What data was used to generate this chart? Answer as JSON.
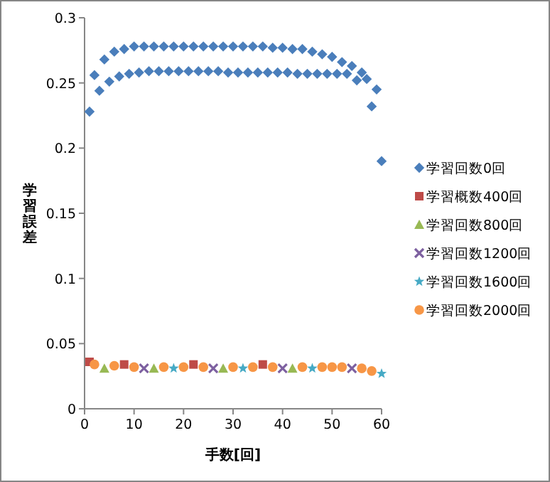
{
  "chart_data": {
    "type": "scatter",
    "xlabel": "手数[回]",
    "ylabel": "学習誤差",
    "xlim": [
      0,
      60
    ],
    "ylim": [
      0,
      0.3
    ],
    "xticks": [
      0,
      10,
      20,
      30,
      40,
      50,
      60
    ],
    "yticks": [
      0,
      0.05,
      0.1,
      0.15,
      0.2,
      0.25,
      0.3
    ],
    "grid": false,
    "legend": "right",
    "series": [
      {
        "name": "学習回数0回",
        "color": "#4a7ebb",
        "marker": "diamond",
        "x": [
          1,
          2,
          3,
          4,
          5,
          6,
          7,
          8,
          9,
          10,
          11,
          12,
          13,
          14,
          15,
          16,
          17,
          18,
          19,
          20,
          21,
          22,
          23,
          24,
          25,
          26,
          27,
          28,
          29,
          30,
          31,
          32,
          33,
          34,
          35,
          36,
          37,
          38,
          39,
          40,
          41,
          42,
          43,
          44,
          45,
          46,
          47,
          48,
          49,
          50,
          51,
          52,
          53,
          54,
          55,
          56,
          57,
          58,
          59,
          60
        ],
        "values": [
          0.228,
          0.256,
          0.244,
          0.268,
          0.251,
          0.274,
          0.255,
          0.276,
          0.257,
          0.278,
          0.258,
          0.278,
          0.259,
          0.278,
          0.259,
          0.278,
          0.259,
          0.278,
          0.259,
          0.278,
          0.259,
          0.278,
          0.259,
          0.278,
          0.259,
          0.278,
          0.259,
          0.278,
          0.258,
          0.278,
          0.258,
          0.278,
          0.258,
          0.278,
          0.258,
          0.278,
          0.258,
          0.277,
          0.258,
          0.277,
          0.258,
          0.276,
          0.257,
          0.276,
          0.257,
          0.274,
          0.257,
          0.272,
          0.257,
          0.27,
          0.257,
          0.266,
          0.257,
          0.263,
          0.252,
          0.258,
          0.253,
          0.232,
          0.245,
          0.19
        ]
      },
      {
        "name": "学習概数400回",
        "color": "#be4b48",
        "marker": "square",
        "x": [
          1,
          8,
          22,
          36
        ],
        "values": [
          0.036,
          0.034,
          0.034,
          0.034
        ]
      },
      {
        "name": "学習回数800回",
        "color": "#98b954",
        "marker": "triangle",
        "x": [
          4,
          14,
          28,
          42
        ],
        "values": [
          0.031,
          0.031,
          0.031,
          0.031
        ]
      },
      {
        "name": "学習回数1200回",
        "color": "#7d60a0",
        "marker": "cross",
        "x": [
          12,
          26,
          40,
          54
        ],
        "values": [
          0.031,
          0.031,
          0.031,
          0.031
        ]
      },
      {
        "name": "学習回数1600回",
        "color": "#46aac5",
        "marker": "star",
        "x": [
          18,
          32,
          46,
          60
        ],
        "values": [
          0.031,
          0.031,
          0.031,
          0.027
        ]
      },
      {
        "name": "学習回数2000回",
        "color": "#f79646",
        "marker": "circle",
        "x": [
          2,
          6,
          10,
          16,
          20,
          24,
          30,
          34,
          38,
          44,
          48,
          50,
          52,
          56,
          58
        ],
        "values": [
          0.034,
          0.033,
          0.032,
          0.032,
          0.032,
          0.032,
          0.032,
          0.032,
          0.032,
          0.032,
          0.032,
          0.032,
          0.032,
          0.031,
          0.029
        ]
      }
    ]
  }
}
